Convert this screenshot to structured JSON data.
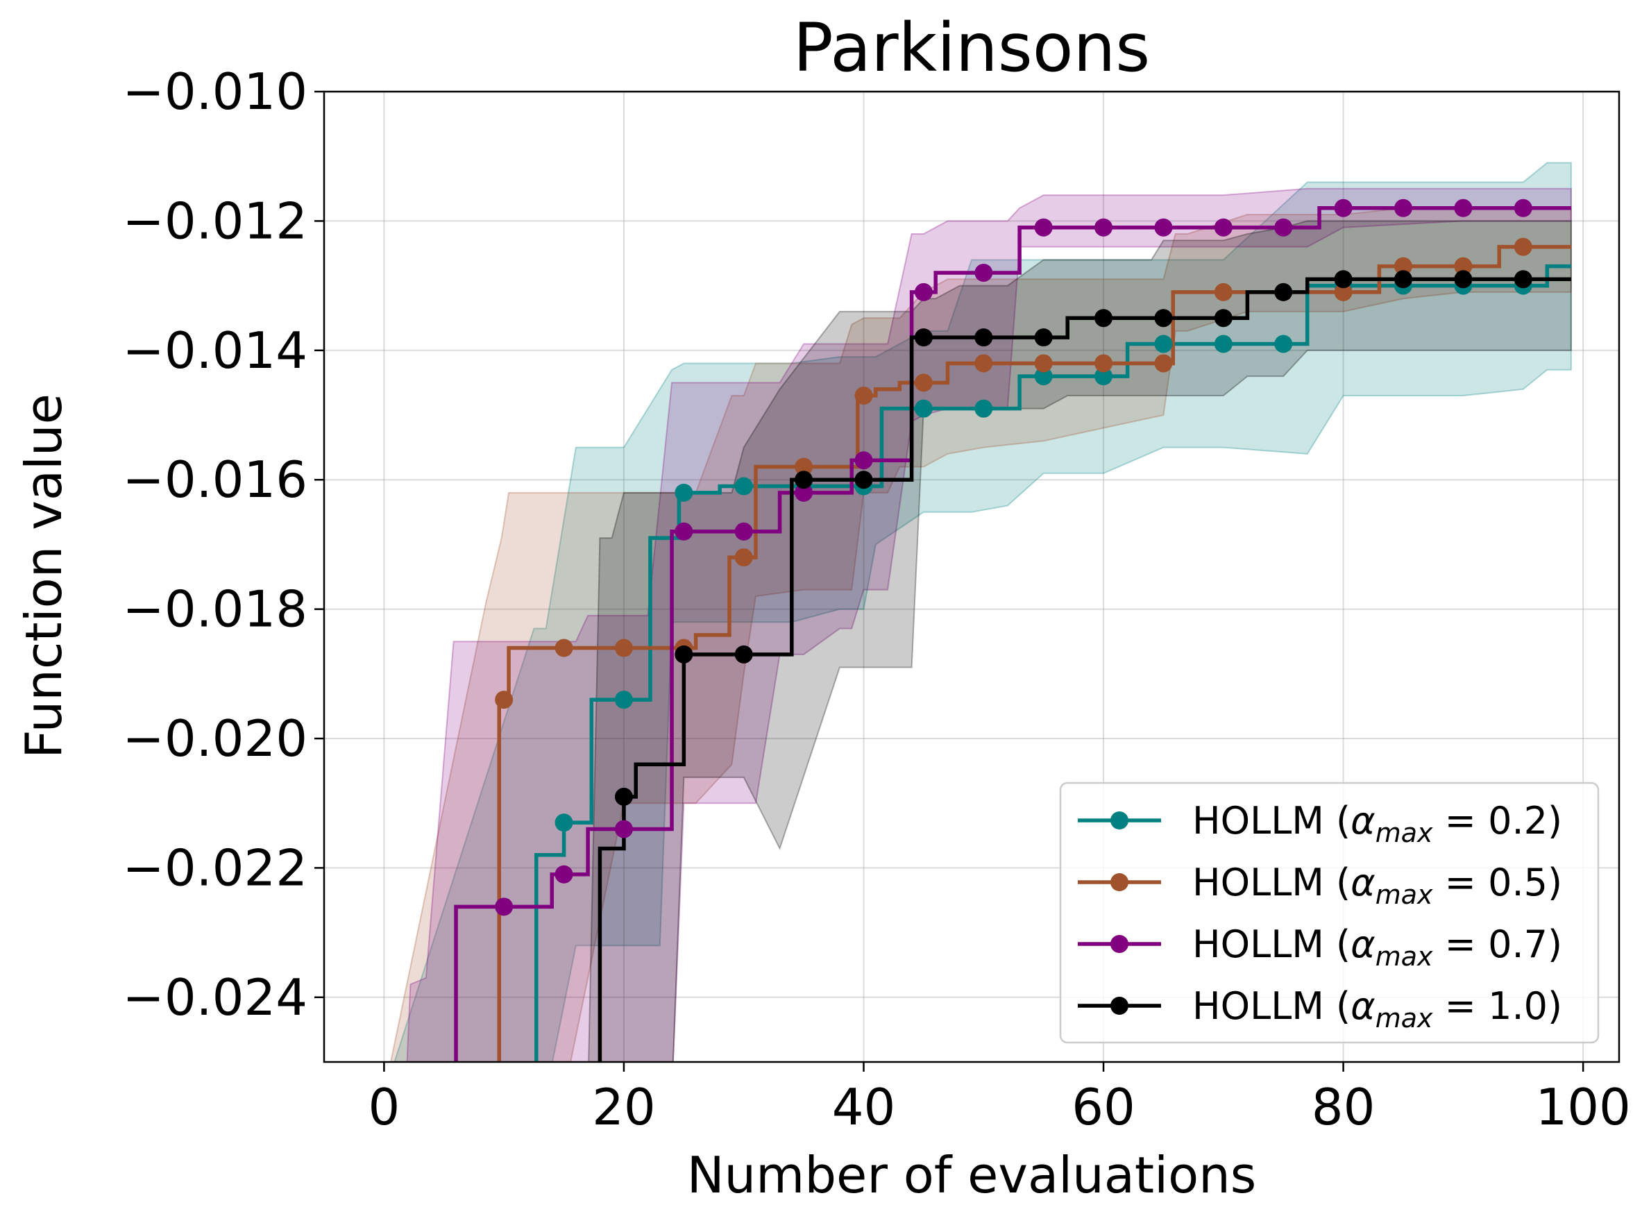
{
  "chart_data": {
    "type": "line",
    "title": "Parkinsons",
    "xlabel": "Number of evaluations",
    "ylabel": "Function value",
    "xlim": [
      -5,
      103
    ],
    "ylim": [
      -0.025,
      -0.01
    ],
    "grid": true,
    "legend_position": "lower-right",
    "x_ticks": [
      0,
      20,
      40,
      60,
      80,
      100
    ],
    "x_tick_labels": [
      "0",
      "20",
      "40",
      "60",
      "80",
      "100"
    ],
    "y_ticks": [
      -0.024,
      -0.022,
      -0.02,
      -0.018,
      -0.016,
      -0.014,
      -0.012,
      -0.01
    ],
    "y_tick_labels": [
      "−0.024",
      "−0.022",
      "−0.020",
      "−0.018",
      "−0.016",
      "−0.014",
      "−0.012",
      "−0.010"
    ],
    "series": [
      {
        "name": "HOLLM (α_max = 0.2)",
        "legend_prefix": "HOLLM (",
        "legend_alpha": "α",
        "legend_sub": "max",
        "legend_value": " = 0.2)",
        "color": "#008080",
        "x": [
          0,
          12,
          12.7,
          13,
          14,
          15,
          16.2,
          17.3,
          18.5,
          19,
          20,
          21,
          22.2,
          23.5,
          24.6,
          25,
          26,
          27,
          28,
          29,
          30,
          31,
          32,
          33,
          34,
          35,
          37,
          38,
          39,
          40,
          41,
          41.5,
          43,
          44,
          45,
          46,
          47,
          48,
          49,
          50,
          51,
          52,
          53,
          54,
          55,
          56,
          57,
          58,
          59,
          60,
          61,
          62,
          63,
          64,
          65,
          66,
          67,
          68,
          69,
          70,
          71,
          72,
          73,
          74,
          75,
          76,
          77,
          78,
          79,
          80,
          81,
          82,
          83,
          84,
          85,
          86,
          87,
          88,
          89,
          90,
          91,
          92,
          93,
          94,
          95,
          96,
          97,
          98,
          99
        ],
        "y": [
          -0.0255,
          -0.0255,
          -0.0218,
          -0.0218,
          -0.0218,
          -0.0213,
          -0.0213,
          -0.0194,
          -0.0194,
          -0.0194,
          -0.0194,
          -0.0194,
          -0.0169,
          -0.0169,
          -0.0162,
          -0.0162,
          -0.0162,
          -0.0162,
          -0.0161,
          -0.0161,
          -0.0161,
          -0.0161,
          -0.0161,
          -0.0161,
          -0.0161,
          -0.0161,
          -0.0161,
          -0.0161,
          -0.0161,
          -0.0161,
          -0.0161,
          -0.0149,
          -0.0149,
          -0.0149,
          -0.0149,
          -0.0149,
          -0.0149,
          -0.0149,
          -0.0149,
          -0.0149,
          -0.0149,
          -0.0149,
          -0.0144,
          -0.0144,
          -0.0144,
          -0.0144,
          -0.0144,
          -0.0144,
          -0.0144,
          -0.0144,
          -0.0144,
          -0.0139,
          -0.0139,
          -0.0139,
          -0.0139,
          -0.0139,
          -0.0139,
          -0.0139,
          -0.0139,
          -0.0139,
          -0.0139,
          -0.0139,
          -0.0139,
          -0.0139,
          -0.0139,
          -0.0139,
          -0.013,
          -0.013,
          -0.013,
          -0.013,
          -0.013,
          -0.013,
          -0.013,
          -0.013,
          -0.013,
          -0.013,
          -0.013,
          -0.013,
          -0.013,
          -0.013,
          -0.013,
          -0.013,
          -0.013,
          -0.013,
          -0.013,
          -0.013,
          -0.0127,
          -0.0127,
          -0.0127
        ],
        "marker_x": [
          15,
          20,
          25,
          30,
          35,
          40,
          45,
          50,
          55,
          60,
          65,
          70,
          75,
          80,
          85,
          90,
          95
        ],
        "marker_y": [
          -0.0213,
          -0.0194,
          -0.0162,
          -0.0161,
          -0.0161,
          -0.0161,
          -0.0149,
          -0.0149,
          -0.0144,
          -0.0144,
          -0.0139,
          -0.0139,
          -0.0139,
          -0.013,
          -0.013,
          -0.013,
          -0.013
        ],
        "band_x": [
          0,
          12.5,
          13.5,
          16,
          17,
          19,
          20,
          23,
          24,
          25,
          28,
          30,
          34,
          38,
          40,
          41,
          45,
          47,
          49,
          52,
          55,
          60,
          65,
          70,
          77,
          80,
          90,
          95,
          97,
          99
        ],
        "band_upper": [
          -0.0255,
          -0.0183,
          -0.0183,
          -0.0155,
          -0.0155,
          -0.0155,
          -0.0155,
          -0.0146,
          -0.0143,
          -0.0142,
          -0.0142,
          -0.0142,
          -0.0142,
          -0.0141,
          -0.0141,
          -0.0141,
          -0.0137,
          -0.0137,
          -0.0126,
          -0.0126,
          -0.0126,
          -0.0126,
          -0.0126,
          -0.0126,
          -0.0114,
          -0.0114,
          -0.0114,
          -0.0114,
          -0.0111,
          -0.0111
        ],
        "band_lower": [
          -0.0255,
          -0.0255,
          -0.0255,
          -0.0232,
          -0.0232,
          -0.0232,
          -0.0232,
          -0.0232,
          -0.0182,
          -0.0182,
          -0.0182,
          -0.0182,
          -0.0182,
          -0.018,
          -0.018,
          -0.017,
          -0.0165,
          -0.0165,
          -0.0165,
          -0.0164,
          -0.0159,
          -0.0159,
          -0.0155,
          -0.0155,
          -0.0156,
          -0.0147,
          -0.0147,
          -0.0146,
          -0.0143,
          -0.0143
        ]
      },
      {
        "name": "HOLLM (α_max = 0.5)",
        "legend_prefix": "HOLLM (",
        "legend_alpha": "α",
        "legend_sub": "max",
        "legend_value": " = 0.5)",
        "color": "#a0522d",
        "x": [
          0,
          8.8,
          9.6,
          10,
          10.4,
          11,
          15,
          20,
          25,
          26,
          27,
          28,
          28.8,
          29.6,
          30,
          31,
          35,
          38,
          39,
          39.5,
          40,
          41,
          42,
          43,
          45,
          46,
          47,
          48,
          50,
          55,
          60,
          65,
          65.8,
          67,
          70,
          75,
          80,
          83,
          85,
          90,
          93,
          95,
          99
        ],
        "y": [
          -0.0255,
          -0.0255,
          -0.0194,
          -0.0194,
          -0.0186,
          -0.0186,
          -0.0186,
          -0.0186,
          -0.0186,
          -0.0184,
          -0.0184,
          -0.0184,
          -0.0172,
          -0.0172,
          -0.0172,
          -0.0158,
          -0.0158,
          -0.0158,
          -0.0158,
          -0.0147,
          -0.0147,
          -0.0146,
          -0.0146,
          -0.0145,
          -0.0145,
          -0.0145,
          -0.0142,
          -0.0142,
          -0.0142,
          -0.0142,
          -0.0142,
          -0.0142,
          -0.0131,
          -0.0131,
          -0.0131,
          -0.0131,
          -0.0131,
          -0.0127,
          -0.0127,
          -0.0127,
          -0.0124,
          -0.0124,
          -0.0124
        ],
        "marker_x": [
          10,
          15,
          20,
          25,
          30,
          35,
          40,
          45,
          50,
          55,
          60,
          65,
          70,
          75,
          80,
          85,
          90,
          95
        ],
        "marker_y": [
          -0.0194,
          -0.0186,
          -0.0186,
          -0.0186,
          -0.0172,
          -0.0158,
          -0.0147,
          -0.0145,
          -0.0142,
          -0.0142,
          -0.0142,
          -0.0142,
          -0.0131,
          -0.0131,
          -0.0131,
          -0.0127,
          -0.0127,
          -0.0124
        ],
        "band_x": [
          0,
          8.5,
          9.8,
          10.4,
          11,
          15,
          20,
          25,
          26,
          29,
          30,
          31,
          35,
          38,
          39,
          40,
          42,
          43,
          45,
          47,
          50,
          55,
          60,
          65,
          66,
          67,
          72,
          80,
          85,
          90,
          95,
          99
        ],
        "band_upper": [
          -0.0255,
          -0.0179,
          -0.0169,
          -0.0162,
          -0.0162,
          -0.0162,
          -0.0162,
          -0.0162,
          -0.0162,
          -0.0147,
          -0.0147,
          -0.0142,
          -0.0142,
          -0.0142,
          -0.0136,
          -0.0135,
          -0.0135,
          -0.0135,
          -0.0131,
          -0.0129,
          -0.0129,
          -0.0129,
          -0.0129,
          -0.0129,
          -0.0122,
          -0.0122,
          -0.0119,
          -0.0119,
          -0.0118,
          -0.0118,
          -0.0118,
          -0.0118
        ],
        "band_lower": [
          -0.0255,
          -0.0255,
          -0.0255,
          -0.0255,
          -0.0255,
          -0.0255,
          -0.021,
          -0.021,
          -0.021,
          -0.0204,
          -0.019,
          -0.0178,
          -0.0177,
          -0.0177,
          -0.0177,
          -0.0162,
          -0.0162,
          -0.0158,
          -0.0158,
          -0.0156,
          -0.0155,
          -0.0154,
          -0.0152,
          -0.015,
          -0.0137,
          -0.0137,
          -0.0134,
          -0.0134,
          -0.0132,
          -0.0131,
          -0.0131,
          -0.0131
        ]
      },
      {
        "name": "HOLLM (α_max = 0.7)",
        "legend_prefix": "HOLLM (",
        "legend_alpha": "α",
        "legend_sub": "max",
        "legend_value": " = 0.7)",
        "color": "#800080",
        "x": [
          0,
          5.7,
          6,
          10,
          13,
          14,
          15,
          16,
          17,
          18,
          20,
          22,
          24,
          25,
          30,
          31,
          33,
          35,
          36,
          38,
          39,
          40,
          41,
          43,
          44,
          45,
          46,
          47,
          50,
          52,
          53,
          54,
          55,
          60,
          65,
          70,
          75,
          77,
          78,
          80,
          85,
          90,
          95,
          99
        ],
        "y": [
          -0.0255,
          -0.0255,
          -0.0226,
          -0.0226,
          -0.0226,
          -0.0221,
          -0.0221,
          -0.0221,
          -0.0214,
          -0.0214,
          -0.0214,
          -0.0214,
          -0.0168,
          -0.0168,
          -0.0168,
          -0.0168,
          -0.0162,
          -0.0162,
          -0.0162,
          -0.0162,
          -0.0157,
          -0.0157,
          -0.0157,
          -0.0157,
          -0.0131,
          -0.0131,
          -0.0128,
          -0.0128,
          -0.0128,
          -0.0128,
          -0.0121,
          -0.0121,
          -0.0121,
          -0.0121,
          -0.0121,
          -0.0121,
          -0.0121,
          -0.0121,
          -0.0118,
          -0.0118,
          -0.0118,
          -0.0118,
          -0.0118,
          -0.0118
        ],
        "marker_x": [
          10,
          15,
          20,
          25,
          30,
          35,
          40,
          45,
          50,
          55,
          60,
          65,
          70,
          75,
          80,
          85,
          90,
          95
        ],
        "marker_y": [
          -0.0226,
          -0.0221,
          -0.0214,
          -0.0168,
          -0.0168,
          -0.0162,
          -0.0157,
          -0.0131,
          -0.0128,
          -0.0121,
          -0.0121,
          -0.0121,
          -0.0121,
          -0.0121,
          -0.0118,
          -0.0118,
          -0.0118,
          -0.0118
        ],
        "band_x": [
          0,
          1.8,
          2.2,
          3.5,
          5.8,
          10,
          13,
          15,
          16,
          17,
          20,
          22,
          24,
          25,
          30,
          31,
          33,
          35,
          38,
          39,
          40,
          42,
          44,
          45,
          47,
          48,
          52,
          53,
          55,
          60,
          70,
          77,
          80,
          90,
          95,
          99
        ],
        "band_upper": [
          -0.0255,
          -0.0255,
          -0.0238,
          -0.0237,
          -0.0185,
          -0.0185,
          -0.0185,
          -0.0185,
          -0.0185,
          -0.0181,
          -0.0181,
          -0.0181,
          -0.0145,
          -0.0145,
          -0.0145,
          -0.0145,
          -0.0145,
          -0.0139,
          -0.0139,
          -0.0139,
          -0.0139,
          -0.0139,
          -0.0122,
          -0.0122,
          -0.012,
          -0.012,
          -0.012,
          -0.0118,
          -0.0116,
          -0.0116,
          -0.0116,
          -0.0115,
          -0.0115,
          -0.0115,
          -0.0115,
          -0.0115
        ],
        "band_lower": [
          -0.0255,
          -0.0255,
          -0.0255,
          -0.0255,
          -0.0255,
          -0.0255,
          -0.0255,
          -0.0255,
          -0.0255,
          -0.0255,
          -0.0255,
          -0.0255,
          -0.0255,
          -0.021,
          -0.021,
          -0.021,
          -0.0187,
          -0.0187,
          -0.0183,
          -0.0183,
          -0.0177,
          -0.0177,
          -0.0151,
          -0.015,
          -0.0149,
          -0.0149,
          -0.0149,
          -0.0124,
          -0.0124,
          -0.0124,
          -0.0124,
          -0.0124,
          -0.0121,
          -0.012,
          -0.012,
          -0.012
        ]
      },
      {
        "name": "HOLLM (α_max = 1.0)",
        "legend_prefix": "HOLLM (",
        "legend_alpha": "α",
        "legend_sub": "max",
        "legend_value": " = 1.0)",
        "color": "#000000",
        "x": [
          0,
          17.4,
          18,
          19,
          20,
          21,
          24,
          25,
          30,
          33,
          34,
          35,
          40,
          43,
          44,
          45,
          50,
          55,
          56,
          57,
          60,
          65,
          70,
          71,
          72,
          74,
          75,
          76,
          77,
          80,
          85,
          90,
          95,
          99
        ],
        "y": [
          -0.0255,
          -0.0255,
          -0.0217,
          -0.0217,
          -0.0209,
          -0.0204,
          -0.0204,
          -0.0187,
          -0.0187,
          -0.0187,
          -0.016,
          -0.016,
          -0.016,
          -0.016,
          -0.0138,
          -0.0138,
          -0.0138,
          -0.0138,
          -0.0138,
          -0.0135,
          -0.0135,
          -0.0135,
          -0.0135,
          -0.0135,
          -0.0131,
          -0.0131,
          -0.0131,
          -0.0131,
          -0.0129,
          -0.0129,
          -0.0129,
          -0.0129,
          -0.0129,
          -0.0129
        ],
        "marker_x": [
          20,
          25,
          30,
          35,
          40,
          45,
          50,
          55,
          60,
          65,
          70,
          75,
          80,
          85,
          90,
          95
        ],
        "marker_y": [
          -0.0209,
          -0.0187,
          -0.0187,
          -0.016,
          -0.016,
          -0.0138,
          -0.0138,
          -0.0138,
          -0.0135,
          -0.0135,
          -0.0135,
          -0.0131,
          -0.0129,
          -0.0129,
          -0.0129,
          -0.0129
        ],
        "band_x": [
          0,
          17,
          18,
          19,
          20,
          22,
          24,
          25,
          29,
          30,
          33,
          38,
          39,
          43,
          44,
          45,
          46,
          48,
          52,
          55,
          57,
          60,
          64,
          65,
          70,
          72,
          75,
          77,
          80,
          85,
          90,
          95,
          99
        ],
        "band_upper": [
          -0.0255,
          -0.0255,
          -0.0169,
          -0.0169,
          -0.0162,
          -0.0162,
          -0.0162,
          -0.0162,
          -0.0162,
          -0.0155,
          -0.0146,
          -0.0134,
          -0.0134,
          -0.0134,
          -0.0134,
          -0.0132,
          -0.0132,
          -0.013,
          -0.013,
          -0.0126,
          -0.0126,
          -0.0126,
          -0.0126,
          -0.0123,
          -0.0123,
          -0.0122,
          -0.0121,
          -0.012,
          -0.012,
          -0.012,
          -0.012,
          -0.012,
          -0.012
        ],
        "band_lower": [
          -0.0255,
          -0.0255,
          -0.0255,
          -0.0255,
          -0.0255,
          -0.0255,
          -0.0255,
          -0.0206,
          -0.0206,
          -0.0206,
          -0.0217,
          -0.0189,
          -0.0189,
          -0.0189,
          -0.0189,
          -0.0149,
          -0.0149,
          -0.0149,
          -0.0149,
          -0.0149,
          -0.0147,
          -0.0147,
          -0.0147,
          -0.0147,
          -0.0147,
          -0.0144,
          -0.0144,
          -0.014,
          -0.014,
          -0.014,
          -0.014,
          -0.014,
          -0.014
        ]
      }
    ]
  }
}
